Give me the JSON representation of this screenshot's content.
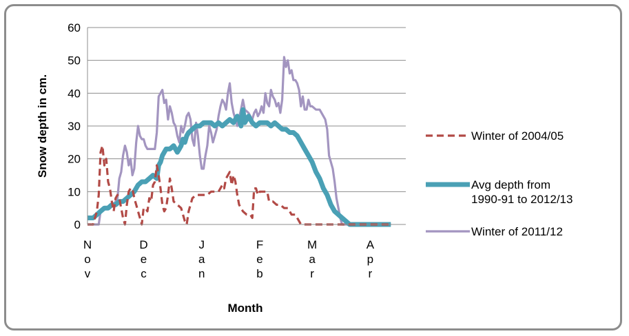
{
  "chart_data": {
    "type": "line",
    "ylabel": "Snow depth in cm.",
    "xlabel": "Month",
    "ylim": [
      0,
      60
    ],
    "yticks": [
      0,
      10,
      20,
      30,
      40,
      50,
      60
    ],
    "xlim": [
      0,
      170
    ],
    "months": [
      {
        "label": "Nov",
        "x": 0
      },
      {
        "label": "Dec",
        "x": 30
      },
      {
        "label": "Jan",
        "x": 61
      },
      {
        "label": "Feb",
        "x": 92
      },
      {
        "label": "Mar",
        "x": 120
      },
      {
        "label": "Apr",
        "x": 151
      }
    ],
    "grid": "horizontal",
    "legend_position": "right",
    "series": [
      {
        "name": "Winter of 2004/05",
        "color": "#b24a46",
        "style": "dashed",
        "points": [
          [
            0,
            0
          ],
          [
            3,
            0
          ],
          [
            5,
            4
          ],
          [
            6,
            9
          ],
          [
            7,
            22
          ],
          [
            8,
            24
          ],
          [
            9,
            18
          ],
          [
            10,
            20
          ],
          [
            11,
            13
          ],
          [
            12,
            11
          ],
          [
            13,
            7
          ],
          [
            14,
            4
          ],
          [
            15,
            8
          ],
          [
            16,
            9
          ],
          [
            17,
            8
          ],
          [
            18,
            5
          ],
          [
            19,
            2
          ],
          [
            20,
            0
          ],
          [
            21,
            6
          ],
          [
            22,
            10
          ],
          [
            23,
            11
          ],
          [
            24,
            11
          ],
          [
            25,
            8
          ],
          [
            26,
            6
          ],
          [
            28,
            2
          ],
          [
            29,
            0
          ],
          [
            30,
            5
          ],
          [
            31,
            5
          ],
          [
            32,
            4
          ],
          [
            33,
            8
          ],
          [
            34,
            7
          ],
          [
            35,
            12
          ],
          [
            36,
            13
          ],
          [
            37,
            18
          ],
          [
            38,
            15
          ],
          [
            39,
            11
          ],
          [
            40,
            6
          ],
          [
            41,
            4
          ],
          [
            42,
            5
          ],
          [
            43,
            9
          ],
          [
            44,
            14
          ],
          [
            45,
            11
          ],
          [
            46,
            7
          ],
          [
            48,
            6
          ],
          [
            50,
            5
          ],
          [
            51,
            3
          ],
          [
            52,
            1
          ],
          [
            53,
            0
          ],
          [
            54,
            4
          ],
          [
            56,
            8
          ],
          [
            58,
            9
          ],
          [
            60,
            9
          ],
          [
            62,
            9
          ],
          [
            64,
            9
          ],
          [
            66,
            10
          ],
          [
            68,
            10
          ],
          [
            70,
            10
          ],
          [
            72,
            12
          ],
          [
            73,
            11
          ],
          [
            74,
            14
          ],
          [
            75,
            15
          ],
          [
            76,
            16
          ],
          [
            77,
            12
          ],
          [
            78,
            15
          ],
          [
            79,
            13
          ],
          [
            80,
            9
          ],
          [
            81,
            6
          ],
          [
            82,
            5
          ],
          [
            83,
            4
          ],
          [
            85,
            3
          ],
          [
            87,
            3
          ],
          [
            88,
            2
          ],
          [
            89,
            11
          ],
          [
            90,
            11
          ],
          [
            91,
            9
          ],
          [
            92,
            10
          ],
          [
            94,
            10
          ],
          [
            96,
            10
          ],
          [
            97,
            7
          ],
          [
            99,
            7
          ],
          [
            101,
            6
          ],
          [
            103,
            6
          ],
          [
            105,
            5
          ],
          [
            107,
            5
          ],
          [
            109,
            3
          ],
          [
            111,
            3
          ],
          [
            113,
            1
          ],
          [
            114,
            0
          ],
          [
            120,
            0
          ],
          [
            130,
            0
          ],
          [
            140,
            0
          ],
          [
            150,
            0
          ],
          [
            158,
            0
          ],
          [
            162,
            0
          ]
        ]
      },
      {
        "name": "Avg depth from 1990-91 to 2012/13",
        "color": "#4aa0b5",
        "style": "solid-thick",
        "points": [
          [
            0,
            2
          ],
          [
            3,
            2
          ],
          [
            5,
            3
          ],
          [
            7,
            4
          ],
          [
            9,
            5
          ],
          [
            11,
            5
          ],
          [
            13,
            6
          ],
          [
            15,
            6
          ],
          [
            17,
            7
          ],
          [
            19,
            7
          ],
          [
            21,
            8
          ],
          [
            23,
            9
          ],
          [
            25,
            10
          ],
          [
            27,
            12
          ],
          [
            29,
            13
          ],
          [
            31,
            13
          ],
          [
            33,
            14
          ],
          [
            35,
            15
          ],
          [
            37,
            14
          ],
          [
            38,
            18
          ],
          [
            39,
            19
          ],
          [
            40,
            21
          ],
          [
            41,
            22
          ],
          [
            42,
            23
          ],
          [
            44,
            23
          ],
          [
            46,
            24
          ],
          [
            48,
            22
          ],
          [
            49,
            23
          ],
          [
            50,
            24
          ],
          [
            51,
            26
          ],
          [
            52,
            25
          ],
          [
            53,
            27
          ],
          [
            54,
            28
          ],
          [
            56,
            29
          ],
          [
            58,
            30
          ],
          [
            60,
            30
          ],
          [
            62,
            31
          ],
          [
            64,
            31
          ],
          [
            66,
            31
          ],
          [
            68,
            30
          ],
          [
            70,
            31
          ],
          [
            72,
            30
          ],
          [
            74,
            31
          ],
          [
            76,
            32
          ],
          [
            78,
            31
          ],
          [
            80,
            33
          ],
          [
            81,
            32
          ],
          [
            82,
            30
          ],
          [
            83,
            35
          ],
          [
            84,
            31
          ],
          [
            86,
            33
          ],
          [
            88,
            31
          ],
          [
            90,
            30
          ],
          [
            92,
            31
          ],
          [
            94,
            31
          ],
          [
            96,
            31
          ],
          [
            98,
            30
          ],
          [
            100,
            31
          ],
          [
            102,
            30
          ],
          [
            104,
            29
          ],
          [
            106,
            29
          ],
          [
            108,
            28
          ],
          [
            110,
            28
          ],
          [
            112,
            27
          ],
          [
            114,
            25
          ],
          [
            116,
            23
          ],
          [
            118,
            21
          ],
          [
            120,
            19
          ],
          [
            122,
            16
          ],
          [
            124,
            14
          ],
          [
            126,
            11
          ],
          [
            128,
            9
          ],
          [
            130,
            6
          ],
          [
            132,
            4
          ],
          [
            134,
            3
          ],
          [
            136,
            2
          ],
          [
            138,
            1
          ],
          [
            140,
            0
          ],
          [
            150,
            0
          ],
          [
            162,
            0
          ]
        ]
      },
      {
        "name": "Winter of 2011/12",
        "color": "#a395c0",
        "style": "solid",
        "points": [
          [
            0,
            0
          ],
          [
            3,
            0
          ],
          [
            5,
            0
          ],
          [
            6,
            0
          ],
          [
            7,
            4
          ],
          [
            8,
            5
          ],
          [
            10,
            5
          ],
          [
            12,
            6
          ],
          [
            14,
            6
          ],
          [
            16,
            8
          ],
          [
            17,
            14
          ],
          [
            18,
            16
          ],
          [
            19,
            21
          ],
          [
            20,
            24
          ],
          [
            21,
            22
          ],
          [
            22,
            18
          ],
          [
            23,
            20
          ],
          [
            24,
            15
          ],
          [
            25,
            17
          ],
          [
            26,
            25
          ],
          [
            27,
            30
          ],
          [
            28,
            27
          ],
          [
            29,
            26
          ],
          [
            30,
            26
          ],
          [
            31,
            24
          ],
          [
            32,
            23
          ],
          [
            34,
            23
          ],
          [
            36,
            23
          ],
          [
            37,
            28
          ],
          [
            38,
            39
          ],
          [
            39,
            40
          ],
          [
            40,
            41
          ],
          [
            41,
            37
          ],
          [
            42,
            38
          ],
          [
            43,
            32
          ],
          [
            44,
            36
          ],
          [
            45,
            34
          ],
          [
            46,
            31
          ],
          [
            47,
            30
          ],
          [
            48,
            27
          ],
          [
            49,
            25
          ],
          [
            50,
            30
          ],
          [
            51,
            28
          ],
          [
            52,
            30
          ],
          [
            53,
            33
          ],
          [
            54,
            34
          ],
          [
            55,
            32
          ],
          [
            56,
            26
          ],
          [
            57,
            24
          ],
          [
            58,
            31
          ],
          [
            59,
            27
          ],
          [
            60,
            21
          ],
          [
            61,
            17
          ],
          [
            62,
            17
          ],
          [
            63,
            21
          ],
          [
            64,
            24
          ],
          [
            65,
            30
          ],
          [
            66,
            28
          ],
          [
            67,
            25
          ],
          [
            68,
            27
          ],
          [
            69,
            29
          ],
          [
            70,
            33
          ],
          [
            71,
            36
          ],
          [
            72,
            38
          ],
          [
            73,
            37
          ],
          [
            74,
            35
          ],
          [
            75,
            40
          ],
          [
            76,
            43
          ],
          [
            77,
            37
          ],
          [
            78,
            34
          ],
          [
            79,
            32
          ],
          [
            80,
            30
          ],
          [
            82,
            35
          ],
          [
            83,
            38
          ],
          [
            84,
            35
          ],
          [
            86,
            34
          ],
          [
            88,
            32
          ],
          [
            89,
            34
          ],
          [
            90,
            35
          ],
          [
            91,
            33
          ],
          [
            92,
            34
          ],
          [
            93,
            36
          ],
          [
            94,
            34
          ],
          [
            95,
            40
          ],
          [
            96,
            37
          ],
          [
            97,
            36
          ],
          [
            98,
            41
          ],
          [
            99,
            39
          ],
          [
            100,
            38
          ],
          [
            101,
            36
          ],
          [
            102,
            37
          ],
          [
            103,
            34
          ],
          [
            104,
            38
          ],
          [
            105,
            51
          ],
          [
            106,
            48
          ],
          [
            107,
            50
          ],
          [
            108,
            46
          ],
          [
            109,
            47
          ],
          [
            110,
            44
          ],
          [
            111,
            44
          ],
          [
            112,
            43
          ],
          [
            113,
            41
          ],
          [
            114,
            36
          ],
          [
            115,
            39
          ],
          [
            116,
            35
          ],
          [
            117,
            35
          ],
          [
            118,
            38
          ],
          [
            119,
            36
          ],
          [
            120,
            36
          ],
          [
            122,
            35
          ],
          [
            124,
            35
          ],
          [
            126,
            33
          ],
          [
            127,
            32
          ],
          [
            128,
            29
          ],
          [
            129,
            21
          ],
          [
            130,
            19
          ],
          [
            131,
            17
          ],
          [
            132,
            13
          ],
          [
            133,
            8
          ],
          [
            134,
            5
          ],
          [
            135,
            2
          ],
          [
            136,
            0
          ],
          [
            140,
            0
          ],
          [
            150,
            0
          ],
          [
            162,
            0
          ]
        ]
      }
    ]
  }
}
